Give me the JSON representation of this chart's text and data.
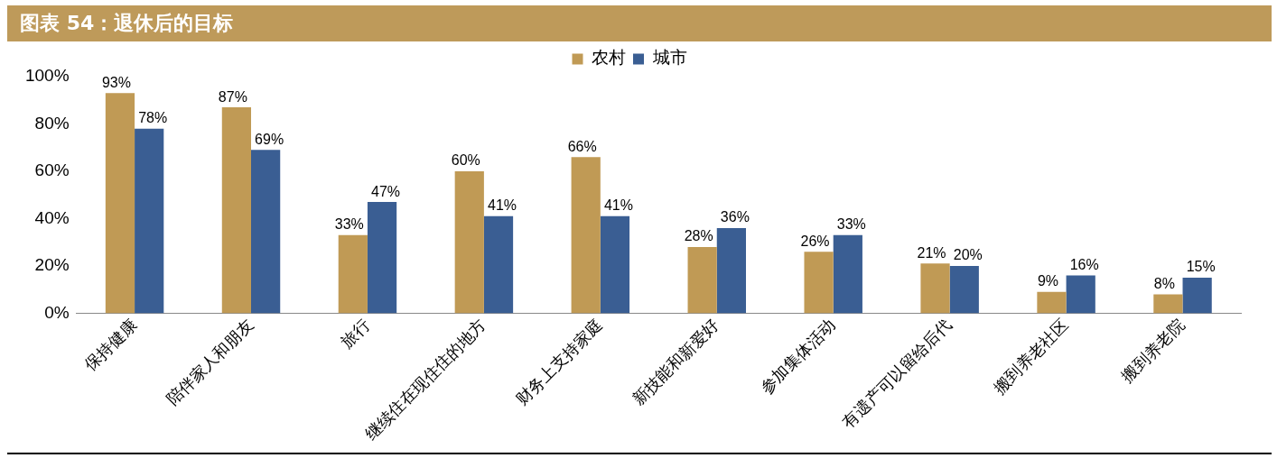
{
  "chart_data": {
    "type": "bar",
    "title": "图表 54：退休后的目标",
    "categories": [
      "保持健康",
      "陪伴家人和朋友",
      "旅行",
      "继续住在现住住的地方",
      "财务上支持家庭",
      "新技能和新爱好",
      "参加集体活动",
      "有遗产可以留给后代",
      "搬到养老社区",
      "搬到养老院"
    ],
    "series": [
      {
        "name": "农村",
        "color": "#c09a55",
        "values": [
          93,
          87,
          33,
          60,
          66,
          28,
          26,
          21,
          9,
          8
        ],
        "value_labels": [
          "93%",
          "87%",
          "33%",
          "60%",
          "66%",
          "28%",
          "26%",
          "21%",
          "9%",
          "8%"
        ]
      },
      {
        "name": "城市",
        "color": "#3a5e93",
        "values": [
          78,
          69,
          47,
          41,
          41,
          36,
          33,
          20,
          16,
          15
        ],
        "value_labels": [
          "78%",
          "69%",
          "47%",
          "41%",
          "41%",
          "36%",
          "33%",
          "20%",
          "16%",
          "15%"
        ]
      }
    ],
    "ylim": [
      0,
      100
    ],
    "yticks": [
      {
        "value": 0,
        "label": "0%"
      },
      {
        "value": 20,
        "label": "20%"
      },
      {
        "value": 40,
        "label": "40%"
      },
      {
        "value": 60,
        "label": "60%"
      },
      {
        "value": 80,
        "label": "80%"
      },
      {
        "value": 100,
        "label": "100%"
      }
    ],
    "grid": false,
    "legend": "top"
  }
}
